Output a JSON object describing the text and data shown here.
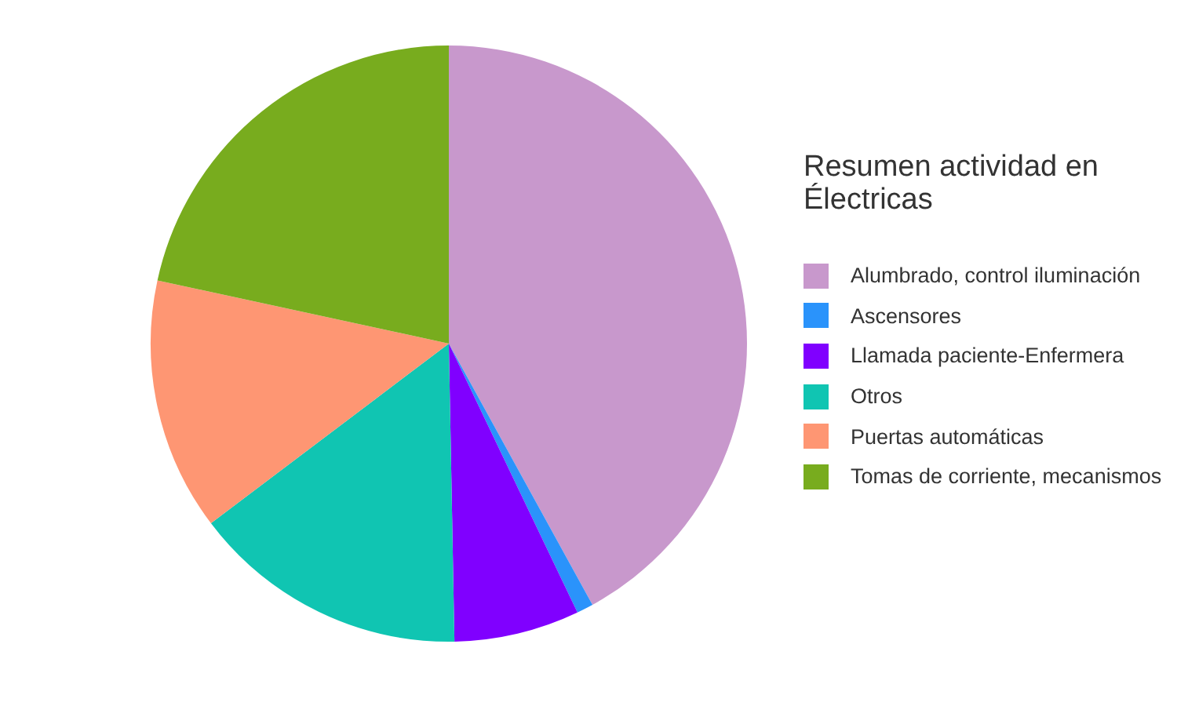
{
  "chart_data": {
    "type": "pie",
    "legend_title": "Resumen actividad en Électricas",
    "categories": [
      "Alumbrado, control iluminación",
      "Ascensores",
      "Llamada paciente-Enfermera",
      "Otros",
      "Puertas automáticas",
      "Tomas de corriente, mecanismos"
    ],
    "values": [
      42,
      0.9,
      6.8,
      15,
      13.7,
      21.6
    ],
    "colors": [
      "#c898cc",
      "#2a93fb",
      "#8000ff",
      "#10c5b2",
      "#fe9673",
      "#78ac1e"
    ],
    "legend": "right"
  }
}
